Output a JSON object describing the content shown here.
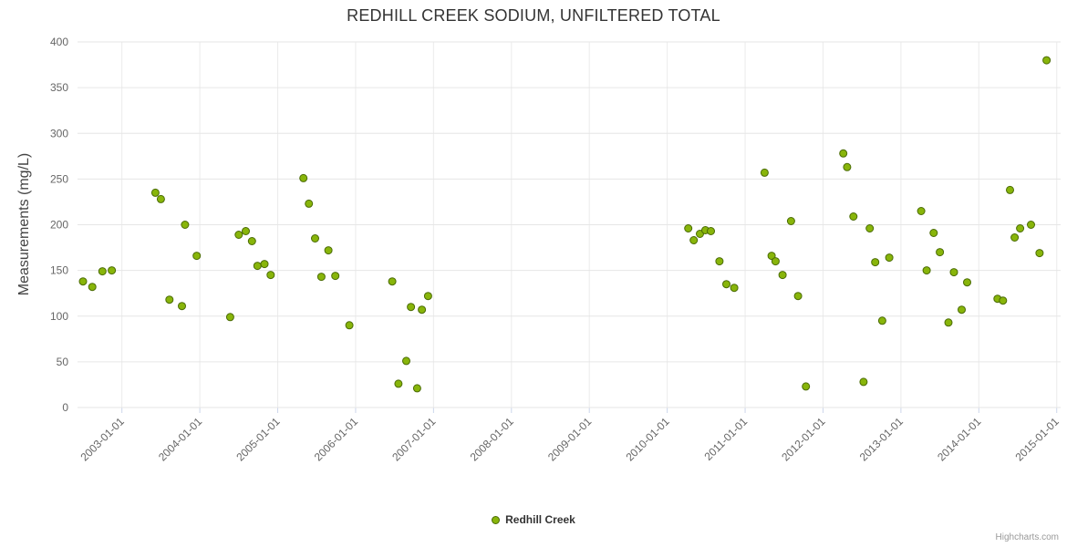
{
  "chart": {
    "title": "REDHILL CREEK SODIUM, UNFILTERED TOTAL",
    "credits": "Highcharts.com",
    "legend": {
      "label": "Redhill Creek"
    }
  },
  "chart_data": {
    "type": "scatter",
    "title": "REDHILL CREEK SODIUM, UNFILTERED TOTAL",
    "xlabel": "",
    "ylabel": "Measurements (mg/L)",
    "ylim": [
      0,
      400
    ],
    "xlim": [
      2002.43,
      2015.05
    ],
    "y_ticks": [
      0,
      50,
      100,
      150,
      200,
      250,
      300,
      350,
      400
    ],
    "x_ticks": [
      {
        "value": 2003,
        "label": "2003-01-01"
      },
      {
        "value": 2004,
        "label": "2004-01-01"
      },
      {
        "value": 2005,
        "label": "2005-01-01"
      },
      {
        "value": 2006,
        "label": "2006-01-01"
      },
      {
        "value": 2007,
        "label": "2007-01-01"
      },
      {
        "value": 2008,
        "label": "2008-01-01"
      },
      {
        "value": 2009,
        "label": "2009-01-01"
      },
      {
        "value": 2010,
        "label": "2010-01-01"
      },
      {
        "value": 2011,
        "label": "2011-01-01"
      },
      {
        "value": 2012,
        "label": "2012-01-01"
      },
      {
        "value": 2013,
        "label": "2013-01-01"
      },
      {
        "value": 2014,
        "label": "2014-01-01"
      },
      {
        "value": 2015,
        "label": "2015-01-01"
      }
    ],
    "grid": {
      "horizontal": true,
      "vertical": true
    },
    "legend_position": "bottom-center",
    "colors": {
      "grid_line": "#e6e6e6",
      "x_grid_line": "#ebebeb",
      "tick_mark": "#ccd6eb",
      "axis_label": "#666666",
      "title": "#333333"
    },
    "series": [
      {
        "name": "Redhill Creek",
        "color": "#88b50a",
        "line_color": "#4a6b05",
        "marker_radius": 4,
        "points": [
          [
            2002.5,
            138
          ],
          [
            2002.62,
            132
          ],
          [
            2002.75,
            149
          ],
          [
            2002.87,
            150
          ],
          [
            2003.43,
            235
          ],
          [
            2003.5,
            228
          ],
          [
            2003.61,
            118
          ],
          [
            2003.77,
            111
          ],
          [
            2003.81,
            200
          ],
          [
            2003.96,
            166
          ],
          [
            2004.39,
            99
          ],
          [
            2004.5,
            189
          ],
          [
            2004.59,
            193
          ],
          [
            2004.67,
            182
          ],
          [
            2004.74,
            155
          ],
          [
            2004.83,
            157
          ],
          [
            2004.91,
            145
          ],
          [
            2005.33,
            251
          ],
          [
            2005.4,
            223
          ],
          [
            2005.48,
            185
          ],
          [
            2005.56,
            143
          ],
          [
            2005.65,
            172
          ],
          [
            2005.74,
            144
          ],
          [
            2005.92,
            90
          ],
          [
            2006.47,
            138
          ],
          [
            2006.55,
            26
          ],
          [
            2006.65,
            51
          ],
          [
            2006.71,
            110
          ],
          [
            2006.79,
            21
          ],
          [
            2006.85,
            107
          ],
          [
            2006.93,
            122
          ],
          [
            2010.27,
            196
          ],
          [
            2010.34,
            183
          ],
          [
            2010.42,
            190
          ],
          [
            2010.49,
            194
          ],
          [
            2010.56,
            193
          ],
          [
            2010.67,
            160
          ],
          [
            2010.76,
            135
          ],
          [
            2010.86,
            131
          ],
          [
            2011.25,
            257
          ],
          [
            2011.34,
            166
          ],
          [
            2011.39,
            160
          ],
          [
            2011.48,
            145
          ],
          [
            2011.59,
            204
          ],
          [
            2011.68,
            122
          ],
          [
            2011.78,
            23
          ],
          [
            2012.26,
            278
          ],
          [
            2012.31,
            263
          ],
          [
            2012.39,
            209
          ],
          [
            2012.52,
            28
          ],
          [
            2012.6,
            196
          ],
          [
            2012.67,
            159
          ],
          [
            2012.76,
            95
          ],
          [
            2012.85,
            164
          ],
          [
            2013.26,
            215
          ],
          [
            2013.33,
            150
          ],
          [
            2013.42,
            191
          ],
          [
            2013.5,
            170
          ],
          [
            2013.61,
            93
          ],
          [
            2013.68,
            148
          ],
          [
            2013.78,
            107
          ],
          [
            2013.85,
            137
          ],
          [
            2014.24,
            119
          ],
          [
            2014.31,
            117
          ],
          [
            2014.4,
            238
          ],
          [
            2014.46,
            186
          ],
          [
            2014.53,
            196
          ],
          [
            2014.67,
            200
          ],
          [
            2014.78,
            169
          ],
          [
            2014.87,
            380
          ]
        ]
      }
    ]
  }
}
